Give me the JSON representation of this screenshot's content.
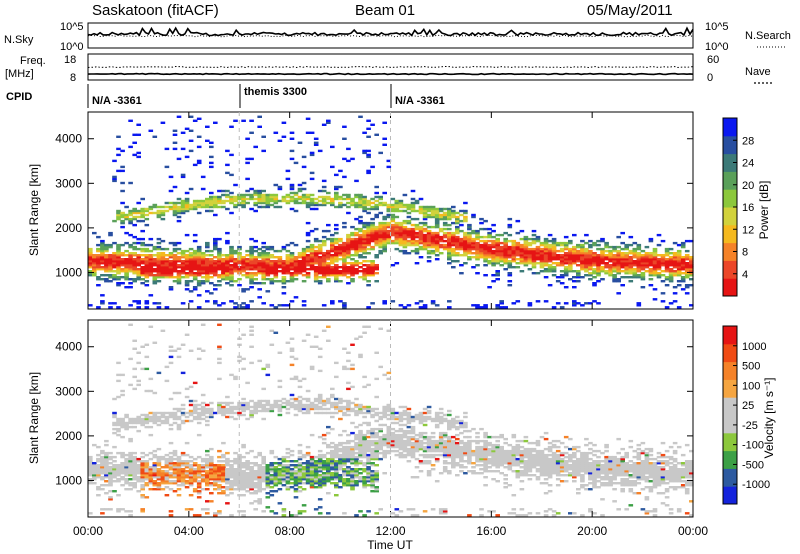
{
  "header": {
    "station": "Saskatoon (fitACF)",
    "beam": "Beam 01",
    "date": "05/May/2011"
  },
  "top_panels": {
    "nsky_label": "N.Sky",
    "nsky_ticks": [
      "10^5",
      "10^0"
    ],
    "nsearch_label": "N.Search",
    "nsearch_ticks": [
      "10^5",
      "10^0"
    ],
    "freq_label_1": "Freq.",
    "freq_label_2": "[MHz]",
    "freq_ticks": [
      "18",
      "8"
    ],
    "nave_label": "Nave",
    "nave_ticks": [
      "60",
      "0"
    ],
    "cpid_label": "CPID",
    "cpid_segments": [
      {
        "text": "N/A -3361",
        "start_hour": 0
      },
      {
        "text": "themis 3300",
        "start_hour": 6
      },
      {
        "text": "N/A -3361",
        "start_hour": 12
      }
    ]
  },
  "chart_data": [
    {
      "type": "heatmap",
      "title": "",
      "xlabel": "Time UT",
      "ylabel": "Slant Range [km]",
      "xlim": [
        0,
        24
      ],
      "ylim": [
        180,
        4600
      ],
      "x_tick_values": [
        0,
        4,
        8,
        12,
        16,
        20,
        24
      ],
      "x_tick_labels": [
        "00:00",
        "04:00",
        "08:00",
        "12:00",
        "16:00",
        "20:00",
        "00:00"
      ],
      "y_tick_values": [
        1000,
        2000,
        3000,
        4000
      ],
      "y_tick_labels": [
        "1000",
        "2000",
        "3000",
        "4000"
      ],
      "colorbar_label": "Power [dB]",
      "colorbar_ticks": [
        "28",
        "24",
        "20",
        "16",
        "12",
        "8",
        "4"
      ],
      "colorbar_colors": [
        "#0a18f0",
        "#284ea0",
        "#3c7a78",
        "#5aa05a",
        "#8cc83c",
        "#d2d23c",
        "#f5b91e",
        "#f58228",
        "#eb4628",
        "#e61414"
      ],
      "dominant_band_km": {
        "00:00": 1250,
        "04:00": 1150,
        "08:00": 1100,
        "12:00": 1900,
        "16:00": 1500,
        "20:00": 1250,
        "24:00": 1150
      }
    },
    {
      "type": "heatmap",
      "title": "",
      "xlabel": "Time UT",
      "ylabel": "Slant Range [km]",
      "xlim": [
        0,
        24
      ],
      "ylim": [
        180,
        4600
      ],
      "x_tick_values": [
        0,
        4,
        8,
        12,
        16,
        20,
        24
      ],
      "x_tick_labels": [
        "00:00",
        "04:00",
        "08:00",
        "12:00",
        "16:00",
        "20:00",
        "00:00"
      ],
      "y_tick_values": [
        1000,
        2000,
        3000,
        4000
      ],
      "y_tick_labels": [
        "1000",
        "2000",
        "3000",
        "4000"
      ],
      "colorbar_label": "Velocity [m s⁻¹]",
      "colorbar_ticks": [
        "1000",
        "500",
        "100",
        "25",
        "-25",
        "-100",
        "-500",
        "-1000"
      ],
      "colorbar_colors": [
        "#e61414",
        "#f04b14",
        "#f58228",
        "#f5a541",
        "#c8c8c8",
        "#c8c8c8",
        "#8cc83c",
        "#3ca046",
        "#2d5aa0",
        "#1423dc"
      ]
    }
  ]
}
